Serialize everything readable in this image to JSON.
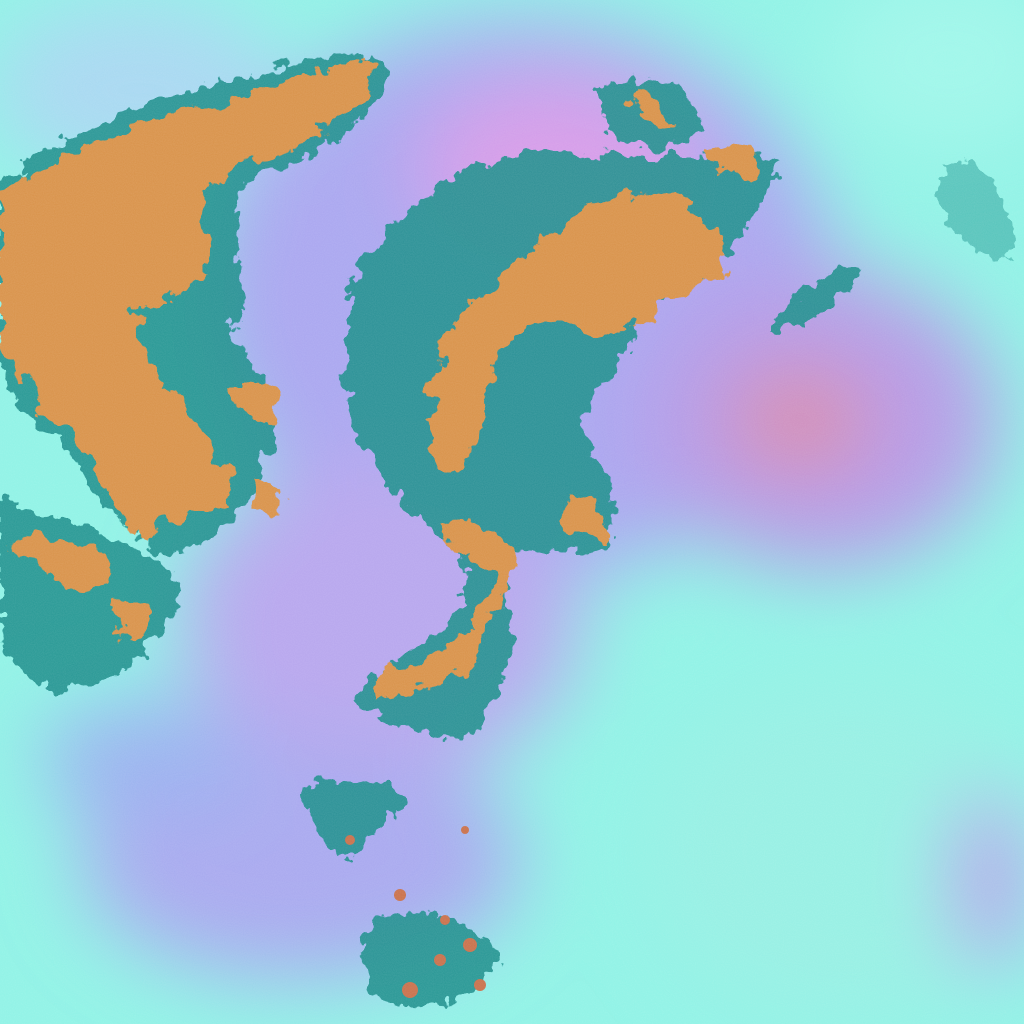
{
  "image": {
    "kind": "false-color satellite imagery",
    "colors": {
      "background_cyan": "#8ff3e6",
      "background_lavender": "#a9a6f0",
      "haze_pink": "#d79be8",
      "cloud_top_orange": "#d9924a",
      "cloud_edge_teal": "#1a8f8c",
      "cloud_shadow_dark": "#1f5f6e",
      "red_patch": "#d98aa8"
    }
  }
}
